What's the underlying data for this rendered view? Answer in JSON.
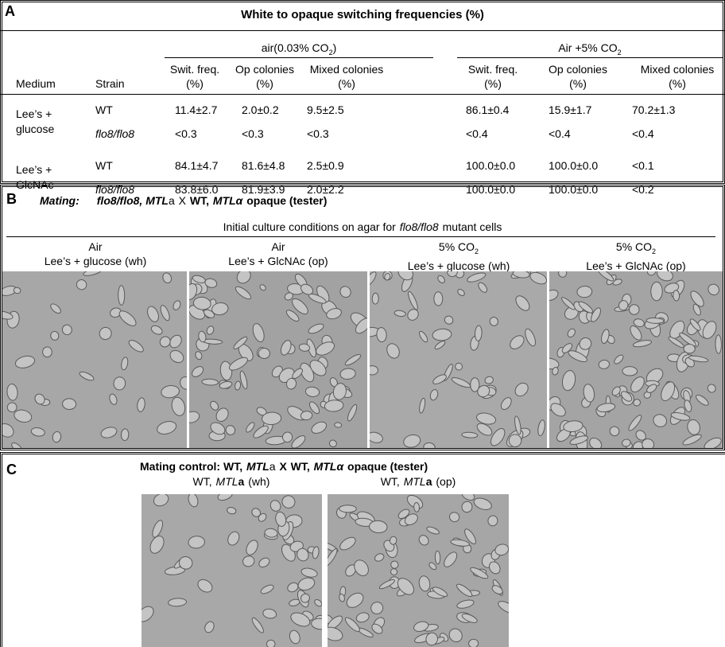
{
  "panel_a": {
    "label": "A",
    "title": "White to opaque switching frequencies (%)",
    "conditions": [
      [
        "air(0.03% CO",
        "2",
        ")"
      ],
      [
        "Air +5% CO",
        "2"
      ]
    ],
    "columns": [
      [
        "Medium"
      ],
      [
        "Strain"
      ],
      [
        "Swit. freq.",
        "(%)"
      ],
      [
        "Op colonies",
        "(%)"
      ],
      [
        "Mixed colonies",
        "(%)"
      ],
      [
        "Swit. freq.",
        "(%)"
      ],
      [
        "Op colonies",
        "(%)"
      ],
      [
        "Mixed colonies",
        "(%)"
      ]
    ],
    "media": [
      {
        "name": [
          "Lee’s +",
          "glucose"
        ],
        "rows": [
          {
            "strain": "WT",
            "values": [
              "11.4±2.7",
              "2.0±0.2",
              "9.5±2.5",
              "86.1±0.4",
              "15.9±1.7",
              "70.2±1.3"
            ]
          },
          {
            "strain": "flo8/flo8",
            "values": [
              "<0.3",
              "<0.3",
              "<0.3",
              "<0.4",
              "<0.4",
              "<0.4"
            ]
          }
        ]
      },
      {
        "name": [
          "Lee’s +",
          "GlcNAc"
        ],
        "rows": [
          {
            "strain": "WT",
            "values": [
              "84.1±4.7",
              "81.6±4.8",
              "2.5±0.9",
              "100.0±0.0",
              "100.0±0.0",
              "<0.1"
            ]
          },
          {
            "strain": "flo8/flo8",
            "values": [
              "83.8±6.0",
              "81.9±3.9",
              "2.0±2.2",
              "100.0±0.0",
              "100.0±0.0",
              "<0.2"
            ]
          }
        ]
      }
    ]
  },
  "panel_b": {
    "label": "B",
    "mating": [
      "Mating:",
      "flo8/flo8, MTL",
      "a",
      "X",
      "WT,",
      "MTL",
      "α",
      "opaque (tester)"
    ],
    "subtitle": [
      "Initial culture conditions on agar for",
      "flo8/flo8",
      "mutant cells"
    ],
    "conditions": [
      {
        "atmosphere": [
          "Air"
        ],
        "medium": "Lee’s + glucose (wh)"
      },
      {
        "atmosphere": [
          "Air"
        ],
        "medium": "Lee’s + GlcNAc (op)"
      },
      {
        "atmosphere": [
          "5% CO",
          "2"
        ],
        "medium": "Lee’s + glucose (wh)"
      },
      {
        "atmosphere": [
          "5% CO",
          "2"
        ],
        "medium": "Lee’s + GlcNAc (op)"
      }
    ]
  },
  "panel_c": {
    "label": "C",
    "title": [
      "Mating control: WT,",
      "MTL",
      "a",
      "X",
      "WT,",
      "MTL",
      "α",
      "opaque (tester)"
    ],
    "images": [
      [
        "WT,",
        "MTL",
        "a",
        "(wh)"
      ],
      [
        "WT,",
        "MTL",
        "a",
        "(op)"
      ]
    ]
  }
}
